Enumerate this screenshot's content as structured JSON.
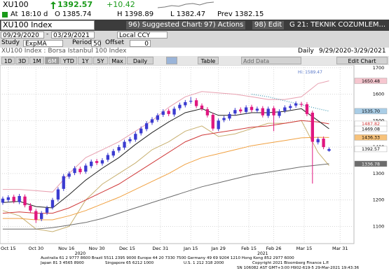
{
  "header": {
    "ticker": "XU100",
    "last": "1392.57",
    "change": "+10.42",
    "time_label": "At",
    "time": "18:10 d",
    "open": "O 1385.74",
    "high": "H 1398.89",
    "low": "L 1382.47",
    "prev": "Prev 1382.15"
  },
  "toolbar": {
    "security": "XU100 Index",
    "buttons": [
      "96) Suggested Charts",
      "97) Actions",
      "98) Edit"
    ],
    "page": "G 21: TEKNIK COZUMLEM..."
  },
  "range": {
    "start": "09/29/2020",
    "sep": "-",
    "end": "03/29/2021",
    "currency": "Local CCY"
  },
  "study": {
    "label": "Study",
    "name": "ExpMA",
    "period_label": "Period",
    "period": "50",
    "offset_label": "Offset",
    "offset": "0"
  },
  "description": "XU100 Index : Borsa Istanbul 100 Index",
  "frequency": "Daily",
  "span": "9/29/2020-3/29/2021",
  "periods": [
    "1D",
    "3D",
    "1M",
    "6M",
    "YTD",
    "1Y",
    "5Y",
    "Max"
  ],
  "interval": "Daily",
  "table": "Table",
  "add_data": "Add Data",
  "edit_chart": "Edit Chart",
  "chart_data": {
    "type": "candlestick",
    "up_color": "#3b3bd0",
    "down_color": "#e0177f",
    "xlim": [
      -0.5,
      63.5
    ],
    "xticks": [
      {
        "value": 1,
        "label": "Oct 15"
      },
      {
        "value": 6,
        "label": "Oct 30"
      },
      {
        "value": 11.5,
        "label": "Nov 16"
      },
      {
        "value": 17,
        "label": "Nov 30"
      },
      {
        "value": 22.5,
        "label": "Dec 15"
      },
      {
        "value": 28.5,
        "label": "Dec 31"
      },
      {
        "value": 34,
        "label": "Jan 15"
      },
      {
        "value": 39,
        "label": "Jan 29"
      },
      {
        "value": 44.5,
        "label": "Feb 15"
      },
      {
        "value": 49,
        "label": "Feb 26"
      },
      {
        "value": 54.5,
        "label": "Mar 15"
      },
      {
        "value": 61,
        "label": "Mar 31"
      }
    ],
    "year_labels": [
      {
        "value": 14,
        "label": "2020"
      },
      {
        "value": 47,
        "label": "2021"
      }
    ],
    "ylim": [
      1035,
      1710
    ],
    "yticks": [
      1100,
      1200,
      1300,
      1400,
      1500,
      1600,
      1700
    ],
    "grid": true,
    "candles": {
      "open": [
        1190,
        1200,
        1212,
        1192,
        1213,
        1178,
        1158,
        1128,
        1152,
        1172,
        1202,
        1242,
        1288,
        1302,
        1318,
        1307,
        1328,
        1347,
        1338,
        1352,
        1368,
        1387,
        1398,
        1422,
        1428,
        1452,
        1468,
        1492,
        1503,
        1522,
        1537,
        1523,
        1547,
        1558,
        1572,
        1577,
        1557,
        1543,
        1522,
        1468,
        1502,
        1508,
        1527,
        1542,
        1533,
        1552,
        1538,
        1547,
        1518,
        1547,
        1518,
        1537,
        1548,
        1557,
        1563,
        1562,
        1530,
        1418,
        1432,
        1385.74
      ],
      "high": [
        1213,
        1218,
        1220,
        1223,
        1221,
        1188,
        1166,
        1158,
        1178,
        1208,
        1248,
        1298,
        1308,
        1328,
        1326,
        1338,
        1353,
        1355,
        1358,
        1378,
        1393,
        1408,
        1428,
        1438,
        1458,
        1478,
        1498,
        1513,
        1528,
        1543,
        1545,
        1553,
        1568,
        1578,
        1589.47,
        1585,
        1565,
        1551,
        1530,
        1508,
        1518,
        1533,
        1548,
        1550,
        1558,
        1560,
        1553,
        1555,
        1553,
        1555,
        1543,
        1558,
        1563,
        1573,
        1571,
        1570,
        1538,
        1438,
        1440,
        1398.89
      ],
      "low": [
        1182,
        1192,
        1187,
        1184,
        1172,
        1152,
        1113,
        1120,
        1144,
        1164,
        1194,
        1234,
        1280,
        1294,
        1297,
        1299,
        1320,
        1332,
        1330,
        1344,
        1360,
        1379,
        1390,
        1414,
        1420,
        1444,
        1460,
        1484,
        1495,
        1514,
        1517,
        1515,
        1539,
        1550,
        1564,
        1547,
        1537,
        1512,
        1462,
        1460,
        1494,
        1500,
        1519,
        1527,
        1525,
        1532,
        1530,
        1512,
        1510,
        1460,
        1510,
        1529,
        1540,
        1549,
        1552,
        1517,
        1262,
        1410,
        1392,
        1382.47
      ],
      "close": [
        1205,
        1210,
        1195,
        1215,
        1180,
        1160,
        1125,
        1150,
        1170,
        1200,
        1240,
        1290,
        1300,
        1320,
        1305,
        1330,
        1345,
        1340,
        1350,
        1370,
        1385,
        1400,
        1420,
        1430,
        1450,
        1470,
        1490,
        1505,
        1520,
        1535,
        1525,
        1545,
        1560,
        1570,
        1575,
        1555,
        1545,
        1520,
        1470,
        1500,
        1510,
        1525,
        1540,
        1535,
        1550,
        1540,
        1545,
        1520,
        1545,
        1520,
        1535,
        1550,
        1555,
        1565,
        1560,
        1525,
        1420,
        1430,
        1400,
        1392.57
      ]
    },
    "lines": [
      {
        "color": "#e8a0b0",
        "x": [
          0,
          3,
          6,
          9,
          12,
          15,
          18,
          21,
          24,
          27,
          30,
          33,
          36,
          39,
          42,
          45,
          48,
          51,
          54,
          57,
          59
        ],
        "values": [
          1240,
          1240,
          1235,
          1230,
          1300,
          1360,
          1390,
          1420,
          1460,
          1500,
          1550,
          1590,
          1610,
          1605,
          1600,
          1590,
          1580,
          1580,
          1590,
          1640,
          1650.48
        ]
      },
      {
        "color": "#c8b070",
        "x": [
          0,
          3,
          6,
          9,
          12,
          15,
          18,
          21,
          24,
          27,
          30,
          33,
          36,
          39,
          42,
          45,
          48,
          51,
          54,
          57,
          59
        ],
        "values": [
          1160,
          1140,
          1090,
          1080,
          1100,
          1200,
          1260,
          1300,
          1340,
          1390,
          1420,
          1460,
          1480,
          1440,
          1450,
          1470,
          1490,
          1490,
          1500,
          1380,
          1330
        ]
      },
      {
        "color": "#6c6c6c",
        "x": [
          0,
          3,
          6,
          9,
          12,
          15,
          18,
          21,
          24,
          27,
          30,
          33,
          36,
          39,
          42,
          45,
          48,
          51,
          54,
          57,
          59
        ],
        "values": [
          1090,
          1090,
          1090,
          1095,
          1105,
          1115,
          1130,
          1150,
          1170,
          1190,
          1210,
          1230,
          1250,
          1265,
          1280,
          1295,
          1305,
          1315,
          1325,
          1332,
          1336.78
        ]
      },
      {
        "color": "#f0a040",
        "x": [
          0,
          3,
          6,
          9,
          12,
          15,
          18,
          21,
          24,
          27,
          30,
          33,
          36,
          39,
          42,
          45,
          48,
          51,
          54,
          57,
          59
        ],
        "values": [
          1130,
          1130,
          1125,
          1125,
          1140,
          1160,
          1185,
          1210,
          1240,
          1270,
          1300,
          1335,
          1360,
          1375,
          1390,
          1405,
          1415,
          1425,
          1435,
          1437,
          1436.33
        ]
      },
      {
        "color": "#d03a3a",
        "x": [
          0,
          3,
          6,
          9,
          12,
          15,
          18,
          21,
          24,
          27,
          30,
          33,
          36,
          39,
          42,
          45,
          48,
          51,
          54,
          57,
          59
        ],
        "values": [
          1150,
          1155,
          1150,
          1150,
          1170,
          1200,
          1230,
          1260,
          1300,
          1340,
          1380,
          1420,
          1445,
          1455,
          1465,
          1475,
          1480,
          1490,
          1500,
          1495,
          1487.82
        ]
      },
      {
        "color": "#222222",
        "x": [
          0,
          3,
          6,
          9,
          12,
          15,
          18,
          21,
          24,
          27,
          30,
          33,
          36,
          39,
          42,
          45,
          48,
          51,
          54,
          57,
          59
        ],
        "values": [
          1190,
          1195,
          1175,
          1170,
          1220,
          1275,
          1320,
          1360,
          1410,
          1455,
          1495,
          1530,
          1545,
          1520,
          1520,
          1530,
          1530,
          1535,
          1545,
          1500,
          1469.08
        ]
      },
      {
        "color": "#4aa0b8",
        "style": "dotted",
        "x": [
          45,
          48,
          51,
          54,
          57,
          59
        ],
        "values": [
          1600,
          1590,
          1575,
          1560,
          1545,
          1535.7
        ]
      }
    ],
    "tags": [
      {
        "value": 1650.48,
        "bg": "#f6c6cf",
        "fg": "#000000"
      },
      {
        "value": 1535.7,
        "label": "1535.70",
        "bg": "#a9cde6",
        "fg": "#000000"
      },
      {
        "value": 1487.82,
        "bg": "#ffffff",
        "fg": "#d03a3a"
      },
      {
        "value": 1469.08,
        "bg": "#ffffff",
        "fg": "#000000"
      },
      {
        "value": 1436.33,
        "bg": "#f7c27a",
        "fg": "#000000"
      },
      {
        "value": 1392.57,
        "bg": "#ffffff",
        "fg": "#000000"
      },
      {
        "value": 1336.78,
        "bg": "#6c6c6c",
        "fg": "#ffffff"
      }
    ],
    "annotation": "Hi: 1589.47"
  },
  "footer": [
    "Australia 61 2 9777 8600 Brazil 5511 2395 9000 Europe 44 20 7330 7500 Germany 49 69 9204 1210 Hong Kong 852 2977 6000",
    "Japan 81 3 4565 8900",
    "Singapore 65 6212 1000",
    "U.S. 1 212 318 2000",
    "Copyright 2021 Bloomberg Finance L.P.",
    "SN 106082 AST  GMT+3:00 H902-619-5 29-Mar-2021 19:43:36"
  ]
}
